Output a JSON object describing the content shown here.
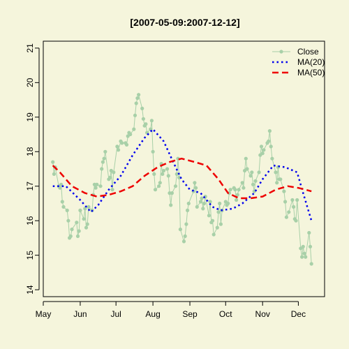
{
  "chart_data": {
    "type": "line",
    "title": "[2007-05-09:2007-12-12]",
    "xlabel": "",
    "ylabel": "",
    "ylim": [
      13.8,
      21.2
    ],
    "xlim": [
      "2007-05-01",
      "2007-12-23"
    ],
    "y_ticks": [
      14,
      15,
      16,
      17,
      18,
      19,
      20,
      21
    ],
    "x_ticks": [
      {
        "date": "2007-05-01",
        "label": "May"
      },
      {
        "date": "2007-06-01",
        "label": "Jun"
      },
      {
        "date": "2007-07-01",
        "label": "Jul"
      },
      {
        "date": "2007-08-01",
        "label": "Aug"
      },
      {
        "date": "2007-09-01",
        "label": "Sep"
      },
      {
        "date": "2007-10-01",
        "label": "Oct"
      },
      {
        "date": "2007-11-01",
        "label": "Nov"
      },
      {
        "date": "2007-12-01",
        "label": "Dec"
      }
    ],
    "legend_position": "top-right",
    "grid": false,
    "series": [
      {
        "name": "Close",
        "style": "line-points",
        "color": "#a8d0a8",
        "points": [
          [
            "2007-05-09",
            17.7
          ],
          [
            "2007-05-10",
            17.35
          ],
          [
            "2007-05-11",
            17.55
          ],
          [
            "2007-05-14",
            17.0
          ],
          [
            "2007-05-15",
            16.95
          ],
          [
            "2007-05-16",
            17.05
          ],
          [
            "2007-05-17",
            16.55
          ],
          [
            "2007-05-18",
            16.4
          ],
          [
            "2007-05-21",
            16.3
          ],
          [
            "2007-05-22",
            16.0
          ],
          [
            "2007-05-23",
            15.5
          ],
          [
            "2007-05-24",
            15.55
          ],
          [
            "2007-05-25",
            15.75
          ],
          [
            "2007-05-29",
            15.95
          ],
          [
            "2007-05-30",
            15.55
          ],
          [
            "2007-05-31",
            15.7
          ],
          [
            "2007-06-01",
            16.3
          ],
          [
            "2007-06-04",
            16.05
          ],
          [
            "2007-06-05",
            16.35
          ],
          [
            "2007-06-06",
            15.8
          ],
          [
            "2007-06-07",
            15.9
          ],
          [
            "2007-06-08",
            16.4
          ],
          [
            "2007-06-11",
            16.3
          ],
          [
            "2007-06-12",
            16.75
          ],
          [
            "2007-06-13",
            17.05
          ],
          [
            "2007-06-14",
            16.95
          ],
          [
            "2007-06-15",
            17.05
          ],
          [
            "2007-06-18",
            17.0
          ],
          [
            "2007-06-19",
            17.5
          ],
          [
            "2007-06-20",
            17.7
          ],
          [
            "2007-06-21",
            17.8
          ],
          [
            "2007-06-22",
            18.0
          ],
          [
            "2007-06-25",
            17.2
          ],
          [
            "2007-06-26",
            17.25
          ],
          [
            "2007-06-27",
            17.45
          ],
          [
            "2007-06-28",
            16.9
          ],
          [
            "2007-06-29",
            17.4
          ],
          [
            "2007-07-02",
            18.15
          ],
          [
            "2007-07-03",
            18.05
          ],
          [
            "2007-07-05",
            18.3
          ],
          [
            "2007-07-06",
            18.25
          ],
          [
            "2007-07-09",
            18.25
          ],
          [
            "2007-07-10",
            18.2
          ],
          [
            "2007-07-11",
            18.45
          ],
          [
            "2007-07-12",
            18.55
          ],
          [
            "2007-07-13",
            18.5
          ],
          [
            "2007-07-16",
            18.65
          ],
          [
            "2007-07-17",
            19.05
          ],
          [
            "2007-07-18",
            19.4
          ],
          [
            "2007-07-19",
            19.55
          ],
          [
            "2007-07-20",
            19.65
          ],
          [
            "2007-07-23",
            19.25
          ],
          [
            "2007-07-24",
            18.95
          ],
          [
            "2007-07-25",
            18.75
          ],
          [
            "2007-07-26",
            18.8
          ],
          [
            "2007-07-27",
            18.55
          ],
          [
            "2007-07-30",
            18.65
          ],
          [
            "2007-07-31",
            18.9
          ],
          [
            "2007-08-01",
            18.0
          ],
          [
            "2007-08-02",
            17.35
          ],
          [
            "2007-08-03",
            16.9
          ],
          [
            "2007-08-06",
            17.0
          ],
          [
            "2007-08-07",
            17.1
          ],
          [
            "2007-08-08",
            17.65
          ],
          [
            "2007-08-09",
            17.35
          ],
          [
            "2007-08-10",
            17.45
          ],
          [
            "2007-08-13",
            17.5
          ],
          [
            "2007-08-14",
            17.3
          ],
          [
            "2007-08-15",
            16.8
          ],
          [
            "2007-08-16",
            16.45
          ],
          [
            "2007-08-17",
            16.8
          ],
          [
            "2007-08-20",
            17.0
          ],
          [
            "2007-08-21",
            17.35
          ],
          [
            "2007-08-22",
            17.8
          ],
          [
            "2007-08-23",
            17.25
          ],
          [
            "2007-08-24",
            15.75
          ],
          [
            "2007-08-27",
            15.4
          ],
          [
            "2007-08-28",
            15.55
          ],
          [
            "2007-08-29",
            15.9
          ],
          [
            "2007-08-30",
            16.3
          ],
          [
            "2007-08-31",
            16.5
          ],
          [
            "2007-09-04",
            16.85
          ],
          [
            "2007-09-05",
            17.1
          ],
          [
            "2007-09-06",
            16.95
          ],
          [
            "2007-09-07",
            16.4
          ],
          [
            "2007-09-10",
            16.55
          ],
          [
            "2007-09-11",
            16.65
          ],
          [
            "2007-09-12",
            16.35
          ],
          [
            "2007-09-13",
            16.5
          ],
          [
            "2007-09-14",
            16.7
          ],
          [
            "2007-09-17",
            16.15
          ],
          [
            "2007-09-18",
            16.55
          ],
          [
            "2007-09-19",
            15.95
          ],
          [
            "2007-09-20",
            16.0
          ],
          [
            "2007-09-21",
            15.6
          ],
          [
            "2007-09-24",
            15.8
          ],
          [
            "2007-09-25",
            16.25
          ],
          [
            "2007-09-26",
            16.5
          ],
          [
            "2007-09-27",
            15.9
          ],
          [
            "2007-09-28",
            16.3
          ],
          [
            "2007-10-01",
            16.55
          ],
          [
            "2007-10-02",
            16.45
          ],
          [
            "2007-10-03",
            16.5
          ],
          [
            "2007-10-04",
            16.8
          ],
          [
            "2007-10-05",
            16.9
          ],
          [
            "2007-10-08",
            16.95
          ],
          [
            "2007-10-09",
            16.9
          ],
          [
            "2007-10-10",
            16.6
          ],
          [
            "2007-10-11",
            16.75
          ],
          [
            "2007-10-12",
            16.9
          ],
          [
            "2007-10-15",
            17.1
          ],
          [
            "2007-10-16",
            16.95
          ],
          [
            "2007-10-17",
            17.45
          ],
          [
            "2007-10-18",
            17.8
          ],
          [
            "2007-10-19",
            17.5
          ],
          [
            "2007-10-22",
            17.3
          ],
          [
            "2007-10-23",
            17.4
          ],
          [
            "2007-10-24",
            17.05
          ],
          [
            "2007-10-25",
            16.85
          ],
          [
            "2007-10-26",
            17.15
          ],
          [
            "2007-10-29",
            17.4
          ],
          [
            "2007-10-30",
            17.9
          ],
          [
            "2007-10-31",
            18.15
          ],
          [
            "2007-11-01",
            17.95
          ],
          [
            "2007-11-02",
            18.05
          ],
          [
            "2007-11-05",
            18.25
          ],
          [
            "2007-11-06",
            18.3
          ],
          [
            "2007-11-07",
            18.6
          ],
          [
            "2007-11-08",
            18.15
          ],
          [
            "2007-11-09",
            17.8
          ],
          [
            "2007-11-12",
            17.4
          ],
          [
            "2007-11-13",
            17.1
          ],
          [
            "2007-11-14",
            17.55
          ],
          [
            "2007-11-15",
            17.2
          ],
          [
            "2007-11-16",
            17.2
          ],
          [
            "2007-11-19",
            16.85
          ],
          [
            "2007-11-20",
            16.55
          ],
          [
            "2007-11-21",
            16.1
          ],
          [
            "2007-11-23",
            16.25
          ],
          [
            "2007-11-26",
            16.6
          ],
          [
            "2007-11-27",
            16.4
          ],
          [
            "2007-11-28",
            16.05
          ],
          [
            "2007-11-29",
            16.0
          ],
          [
            "2007-11-30",
            16.6
          ],
          [
            "2007-12-03",
            15.2
          ],
          [
            "2007-12-04",
            14.95
          ],
          [
            "2007-12-05",
            15.25
          ],
          [
            "2007-12-06",
            15.05
          ],
          [
            "2007-12-07",
            14.95
          ],
          [
            "2007-12-10",
            15.65
          ],
          [
            "2007-12-11",
            15.25
          ],
          [
            "2007-12-12",
            14.75
          ]
        ]
      },
      {
        "name": "MA(20)",
        "style": "dotted",
        "color": "#0000ee",
        "points": [
          [
            "2007-05-09",
            17.0
          ],
          [
            "2007-05-20",
            17.0
          ],
          [
            "2007-06-01",
            16.6
          ],
          [
            "2007-06-10",
            16.25
          ],
          [
            "2007-06-16",
            16.45
          ],
          [
            "2007-06-25",
            16.9
          ],
          [
            "2007-07-05",
            17.3
          ],
          [
            "2007-07-15",
            17.9
          ],
          [
            "2007-07-25",
            18.4
          ],
          [
            "2007-08-01",
            18.65
          ],
          [
            "2007-08-10",
            18.3
          ],
          [
            "2007-08-18",
            17.7
          ],
          [
            "2007-08-25",
            17.2
          ],
          [
            "2007-09-01",
            16.9
          ],
          [
            "2007-09-10",
            16.8
          ],
          [
            "2007-09-20",
            16.4
          ],
          [
            "2007-09-27",
            16.3
          ],
          [
            "2007-10-07",
            16.35
          ],
          [
            "2007-10-15",
            16.5
          ],
          [
            "2007-10-25",
            16.8
          ],
          [
            "2007-11-01",
            17.2
          ],
          [
            "2007-11-10",
            17.6
          ],
          [
            "2007-11-20",
            17.55
          ],
          [
            "2007-11-30",
            17.4
          ],
          [
            "2007-12-05",
            16.8
          ],
          [
            "2007-12-12",
            16.0
          ]
        ]
      },
      {
        "name": "MA(50)",
        "style": "dashed",
        "color": "#ee0000",
        "points": [
          [
            "2007-05-09",
            17.6
          ],
          [
            "2007-05-15",
            17.4
          ],
          [
            "2007-05-25",
            17.0
          ],
          [
            "2007-06-05",
            16.8
          ],
          [
            "2007-06-15",
            16.7
          ],
          [
            "2007-06-25",
            16.75
          ],
          [
            "2007-07-05",
            16.85
          ],
          [
            "2007-07-15",
            17.0
          ],
          [
            "2007-07-25",
            17.3
          ],
          [
            "2007-08-05",
            17.55
          ],
          [
            "2007-08-15",
            17.7
          ],
          [
            "2007-08-25",
            17.8
          ],
          [
            "2007-09-05",
            17.7
          ],
          [
            "2007-09-15",
            17.6
          ],
          [
            "2007-09-25",
            17.2
          ],
          [
            "2007-10-03",
            16.8
          ],
          [
            "2007-10-12",
            16.65
          ],
          [
            "2007-10-22",
            16.65
          ],
          [
            "2007-11-01",
            16.7
          ],
          [
            "2007-11-12",
            16.9
          ],
          [
            "2007-11-22",
            17.0
          ],
          [
            "2007-12-01",
            16.95
          ],
          [
            "2007-12-07",
            16.9
          ],
          [
            "2007-12-12",
            16.85
          ]
        ]
      }
    ]
  }
}
